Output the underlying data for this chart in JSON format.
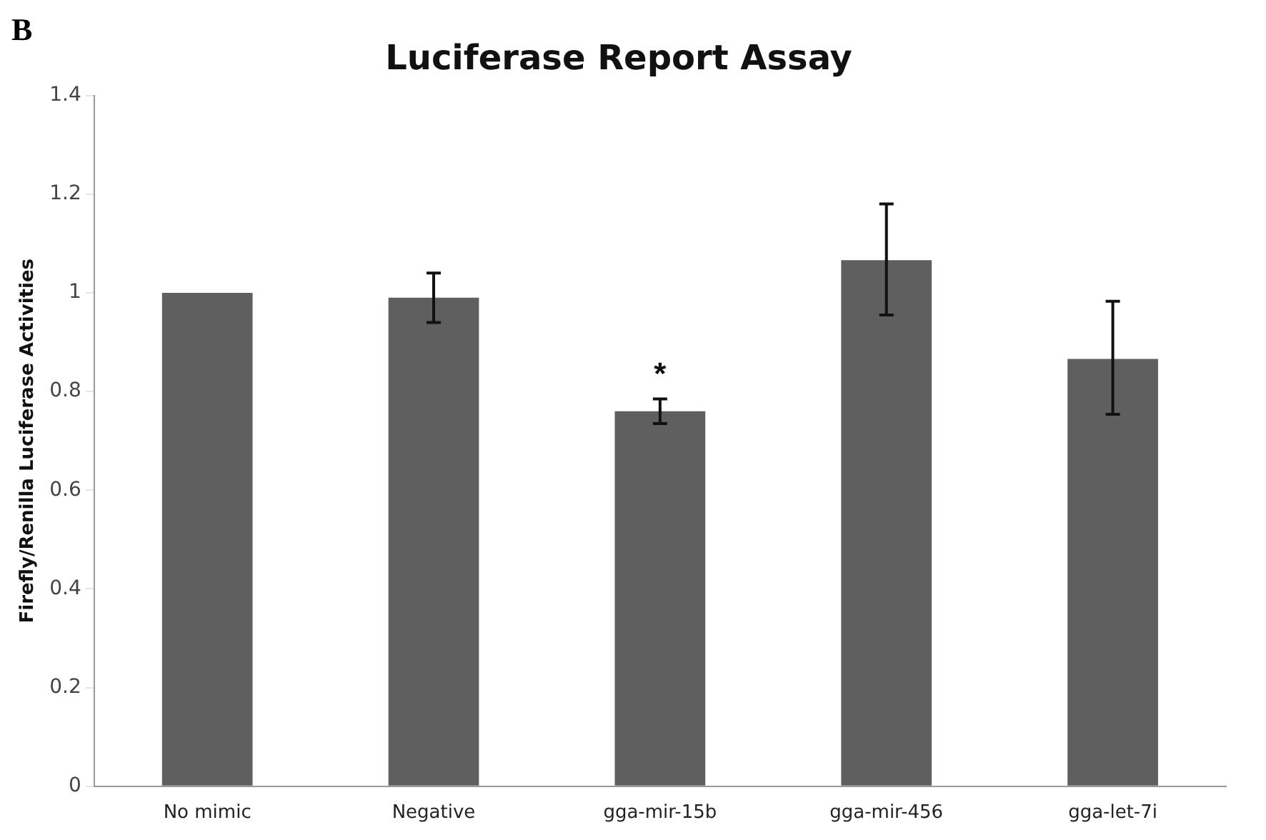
{
  "chart_data": {
    "type": "bar",
    "title": "Luciferase Report Assay",
    "ylabel": "Firefly/Renilla Luciferase Activities",
    "categories": [
      "No mimic",
      "Negative",
      "gga-mir-15b",
      "gga-mir-456",
      "gga-let-7i"
    ],
    "values": [
      1.0,
      0.99,
      0.76,
      1.066,
      0.866
    ],
    "errors": [
      null,
      0.05,
      0.025,
      [
        0.955,
        1.18
      ],
      [
        0.754,
        0.983
      ]
    ],
    "color": "#5f5f5f",
    "ylim": [
      0,
      1.4
    ],
    "yticks": [
      0,
      0.2,
      0.4,
      0.6,
      0.8,
      1,
      1.2,
      1.4
    ],
    "grid": false,
    "legend": false,
    "value_labels": [
      null,
      null,
      "*",
      null,
      null
    ],
    "annotations": [
      "B"
    ]
  }
}
